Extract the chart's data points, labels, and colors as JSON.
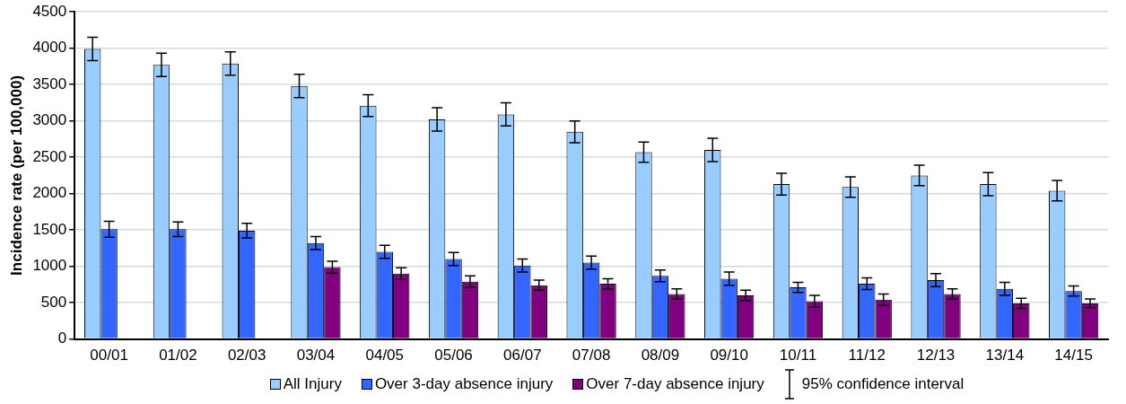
{
  "chart_data": {
    "type": "bar",
    "ylabel": "Incidence rate (per 100,000)",
    "categories": [
      "00/01",
      "01/02",
      "02/03",
      "03/04",
      "04/05",
      "05/06",
      "06/07",
      "07/08",
      "08/09",
      "09/10",
      "10/11",
      "11/12",
      "12/13",
      "13/14",
      "14/15"
    ],
    "series": [
      {
        "name": "All Injury",
        "color": "#99ccff",
        "values": [
          3990,
          3770,
          3790,
          3480,
          3210,
          3020,
          3090,
          2850,
          2570,
          2600,
          2130,
          2090,
          2250,
          2130,
          2040
        ],
        "errors": [
          160,
          160,
          160,
          160,
          150,
          160,
          160,
          150,
          140,
          160,
          150,
          140,
          140,
          160,
          140
        ]
      },
      {
        "name": "Over 3-day absence injury",
        "color": "#3366ff",
        "values": [
          1510,
          1510,
          1490,
          1320,
          1200,
          1100,
          1010,
          1050,
          870,
          830,
          710,
          760,
          810,
          690,
          660
        ],
        "errors": [
          110,
          100,
          100,
          90,
          90,
          90,
          90,
          90,
          80,
          90,
          70,
          80,
          90,
          90,
          70
        ]
      },
      {
        "name": "Over 7-day absence injury",
        "color": "#800080",
        "values": [
          null,
          null,
          null,
          990,
          900,
          790,
          740,
          760,
          620,
          600,
          520,
          540,
          620,
          490,
          490
        ],
        "errors": [
          null,
          null,
          null,
          80,
          80,
          80,
          70,
          70,
          70,
          70,
          80,
          80,
          70,
          70,
          60
        ]
      }
    ],
    "ylim": [
      0,
      4500
    ],
    "yticks": [
      0,
      500,
      1000,
      1500,
      2000,
      2500,
      3000,
      3500,
      4000,
      4500
    ],
    "grid": "y",
    "legend": "bottom",
    "annotations": [
      "95% confidence interval"
    ]
  }
}
